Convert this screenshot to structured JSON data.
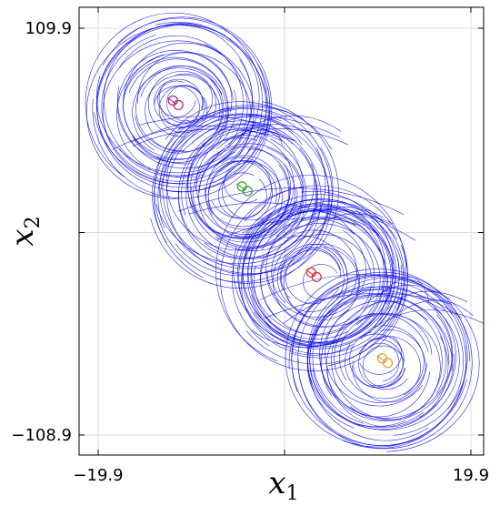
{
  "chart_data": {
    "type": "line",
    "title": "",
    "xlabel": {
      "main": "x",
      "sub": "1"
    },
    "ylabel": {
      "main": "x",
      "sub": "2"
    },
    "xlim": [
      -19.9,
      19.9
    ],
    "ylim": [
      -108.9,
      109.9
    ],
    "xticks": [
      -19.9,
      0,
      19.9
    ],
    "yticks": [
      -108.9,
      0,
      109.9
    ],
    "xtick_labels": [
      "−19.9",
      "",
      "19.9"
    ],
    "ytick_labels": [
      "−108.9",
      "",
      "109.9"
    ],
    "grid": true,
    "trajectory_color": "#0000e6",
    "marker_colors": [
      "#b0207a",
      "#2e9e3a",
      "#d62d2d",
      "#e8961e"
    ],
    "attractor_centers": [
      {
        "x": -10.0,
        "y": 62.0
      },
      {
        "x": -3.5,
        "y": 20.0
      },
      {
        "x": 3.5,
        "y": -22.0
      },
      {
        "x": 10.0,
        "y": -63.0
      }
    ],
    "markers": [
      {
        "x": -10.4,
        "y": 63.0,
        "color": "#b0207a"
      },
      {
        "x": -3.6,
        "y": 21.0,
        "color": "#2e9e3a"
      },
      {
        "x": 3.2,
        "y": -21.0,
        "color": "#d62d2d"
      },
      {
        "x": 10.2,
        "y": -63.0,
        "color": "#e8961e"
      }
    ]
  }
}
